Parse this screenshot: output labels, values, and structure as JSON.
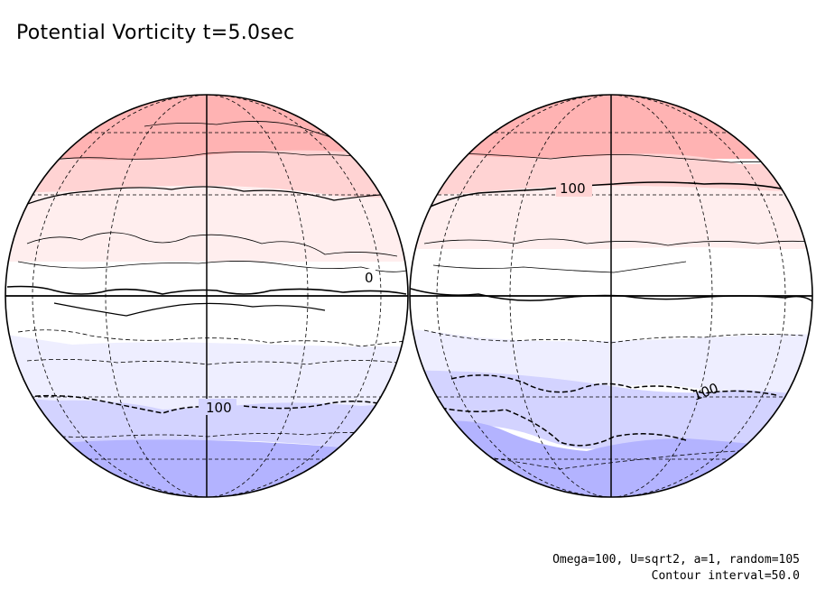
{
  "title": "Potential Vorticity t=5.0sec",
  "footer": {
    "params": "Omega=100, U=sqrt2, a=1, random=105",
    "interval": "Contour interval=50.0"
  },
  "contour_labels": {
    "left_north_zero": "0",
    "left_south": "100",
    "right_north": "100",
    "right_south": "100"
  },
  "colors": {
    "band_pos_3": "#ffb3b3",
    "band_pos_2": "#ffd3d3",
    "band_pos_1": "#ffeeee",
    "band_zero": "#ffffff",
    "band_neg_1": "#eeeeff",
    "band_neg_2": "#d3d3ff",
    "band_neg_3": "#b3b3ff"
  }
}
